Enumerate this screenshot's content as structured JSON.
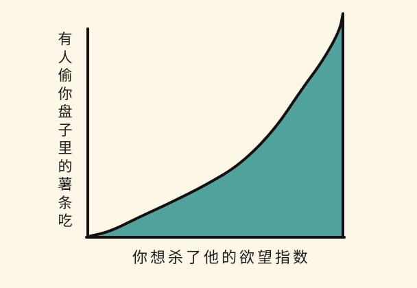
{
  "chart_data": {
    "type": "area",
    "title": "",
    "ylabel": "有人偷你盘子里的薯条吃",
    "xlabel": "你想杀了他的欲望指数",
    "xlim": [
      0,
      100
    ],
    "ylim": [
      0,
      100
    ],
    "grid": false,
    "x": [
      0,
      8.6,
      19.4,
      32.8,
      46.2,
      59.7,
      73.1,
      83.9,
      91.9,
      98.7,
      100
    ],
    "y": [
      0,
      2.2,
      8.3,
      15.4,
      23.1,
      32.3,
      47.7,
      66.2,
      78.5,
      92.3,
      100
    ],
    "fill_color": "#4fa39c",
    "line_color": "#111111"
  }
}
